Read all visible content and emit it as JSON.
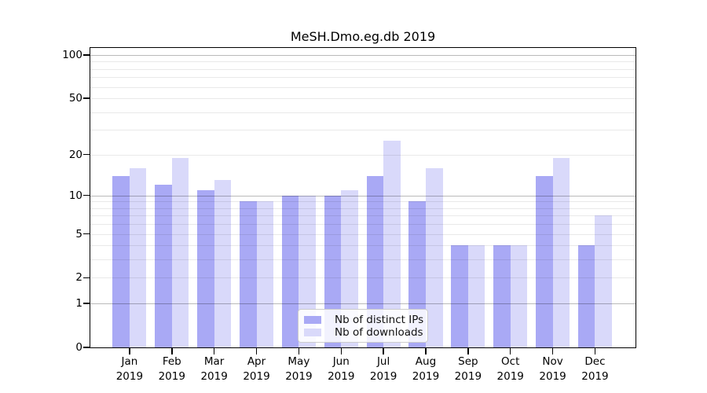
{
  "chart_data": {
    "type": "bar",
    "title": "MeSH.Dmo.eg.db 2019",
    "categories": [
      "Jan 2019",
      "Feb 2019",
      "Mar 2019",
      "Apr 2019",
      "May 2019",
      "Jun 2019",
      "Jul 2019",
      "Aug 2019",
      "Sep 2019",
      "Oct 2019",
      "Nov 2019",
      "Dec 2019"
    ],
    "series": [
      {
        "name": "Nb of distinct IPs",
        "color": "#a9a9f5",
        "values": [
          14,
          12,
          11,
          9,
          10,
          10,
          14,
          9,
          4,
          4,
          14,
          4
        ]
      },
      {
        "name": "Nb of downloads",
        "color": "#d9d9fa",
        "values": [
          16,
          19,
          13,
          9,
          10,
          11,
          25,
          16,
          4,
          4,
          19,
          7
        ]
      }
    ],
    "yscale": "log1p",
    "y_ticks": [
      0,
      1,
      2,
      5,
      10,
      20,
      50,
      100
    ],
    "y_major_gridlines": [
      1,
      10,
      100
    ],
    "y_minor_gridlines": [
      2,
      3,
      4,
      5,
      6,
      7,
      8,
      9,
      20,
      30,
      40,
      50,
      60,
      70,
      80,
      90
    ],
    "ylim": [
      0,
      115
    ],
    "xlabel": "",
    "ylabel": "",
    "grid": "horizontal",
    "legend_position": "lower center inside"
  }
}
